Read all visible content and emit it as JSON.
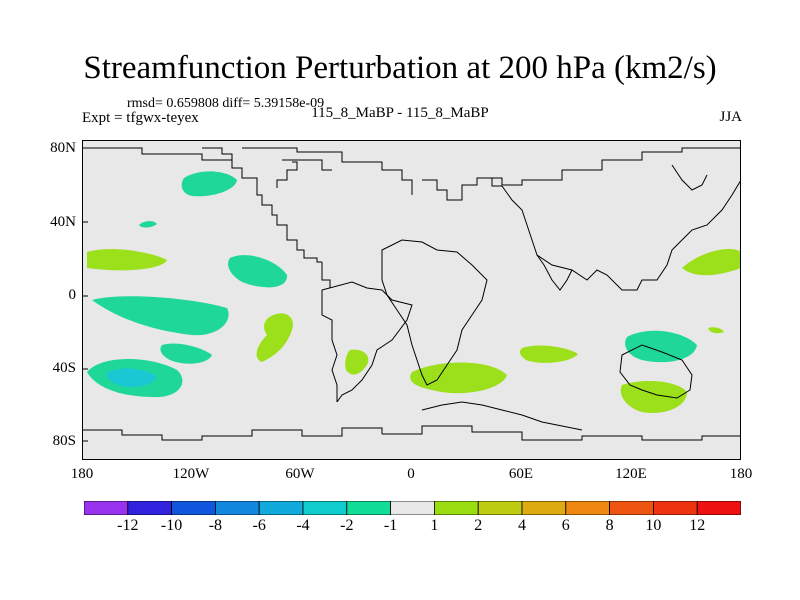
{
  "title": "Streamfunction Perturbation at 200 hPa (km2/s)",
  "stats": "rmsd= 0.659808 diff= 5.39158e-09",
  "expt": "Expt = tfgwx-teyex",
  "case": "115_8_MaBP - 115_8_MaBP",
  "season": "JJA",
  "yticks": [
    "80N",
    "40N",
    "0",
    "40S",
    "80S"
  ],
  "xticks": [
    "180",
    "120W",
    "60W",
    "0",
    "60E",
    "120E",
    "180"
  ],
  "colorbar": {
    "labels": [
      "-12",
      "-10",
      "-8",
      "-6",
      "-4",
      "-2",
      "-1",
      "1",
      "2",
      "4",
      "6",
      "8",
      "10",
      "12"
    ],
    "colors": [
      "#9933ee",
      "#3322dd",
      "#1155dd",
      "#1188dd",
      "#11aadd",
      "#11cccc",
      "#11dd99",
      "#e8e8e8",
      "#99dd11",
      "#bbcc11",
      "#ddaa11",
      "#ee8811",
      "#ee5511",
      "#ee3311",
      "#ee1111"
    ]
  },
  "colors": {
    "neg1": "#20d79a",
    "neg2": "#19c8d2",
    "pos1": "#9be01a",
    "bg": "#e8e8e8"
  }
}
